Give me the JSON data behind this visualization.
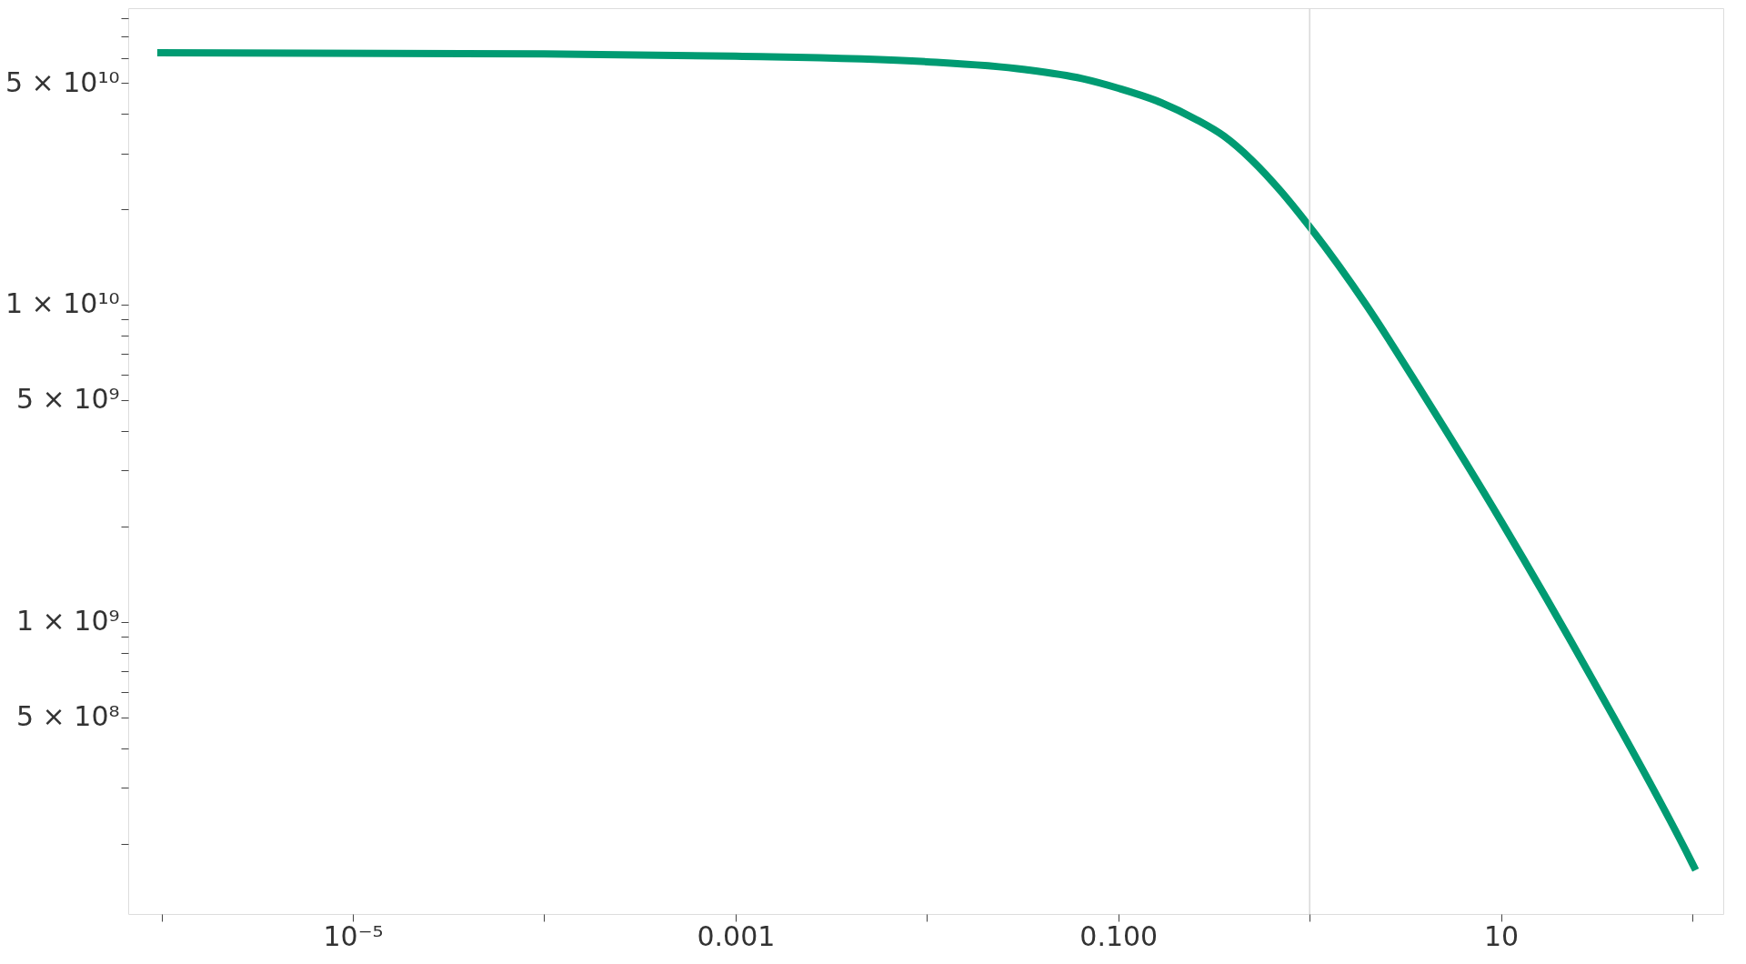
{
  "chart_data": {
    "type": "line",
    "log": "xy",
    "grid": false,
    "line_style": "solid",
    "marker": "none",
    "x": [
      9.5e-07,
      0.0001,
      0.001,
      0.01,
      0.0326,
      0.0646,
      0.1,
      0.168,
      0.254,
      0.356,
      0.5,
      0.706,
      1,
      1.97,
      3.9,
      10,
      30.3,
      100,
      104
    ],
    "series": [
      {
        "color": "#009b72",
        "values": [
          62200000000.0,
          61700000000.0,
          60700000000.0,
          58300000000.0,
          55100000000.0,
          51600000000.0,
          48100000000.0,
          43300000000.0,
          38400000000.0,
          34000000000.0,
          28500000000.0,
          22800000000.0,
          17600000000.0,
          10000000000.0,
          5250000000.0,
          2080000000.0,
          653000000.0,
          173000000.0,
          165000000.0
        ]
      }
    ],
    "xlim": [
      6.7e-07,
      145
    ],
    "ylim": [
      120000000.0,
      86000000000.0
    ],
    "xticks": [
      {
        "value": 1e-06,
        "label": null
      },
      {
        "value": 1e-05,
        "label": "10⁻⁵"
      },
      {
        "value": 0.0001,
        "label": null
      },
      {
        "value": 0.001,
        "label": "0.001"
      },
      {
        "value": 0.01,
        "label": null
      },
      {
        "value": 0.1,
        "label": "0.100"
      },
      {
        "value": 1,
        "label": null
      },
      {
        "value": 10,
        "label": "10"
      },
      {
        "value": 100,
        "label": null
      }
    ],
    "yticks": [
      {
        "value": 200000000.0,
        "label": null
      },
      {
        "value": 300000000.0,
        "label": null
      },
      {
        "value": 400000000.0,
        "label": null
      },
      {
        "value": 500000000.0,
        "label": "5 × 10⁸"
      },
      {
        "value": 600000000.0,
        "label": null
      },
      {
        "value": 700000000.0,
        "label": null
      },
      {
        "value": 800000000.0,
        "label": null
      },
      {
        "value": 900000000.0,
        "label": null
      },
      {
        "value": 1000000000.0,
        "label": "1 × 10⁹"
      },
      {
        "value": 2000000000.0,
        "label": null
      },
      {
        "value": 3000000000.0,
        "label": null
      },
      {
        "value": 4000000000.0,
        "label": null
      },
      {
        "value": 5000000000.0,
        "label": "5 × 10⁹"
      },
      {
        "value": 6000000000.0,
        "label": null
      },
      {
        "value": 7000000000.0,
        "label": null
      },
      {
        "value": 8000000000.0,
        "label": null
      },
      {
        "value": 9000000000.0,
        "label": null
      },
      {
        "value": 10000000000.0,
        "label": "1 × 10¹⁰"
      },
      {
        "value": 20000000000.0,
        "label": null
      },
      {
        "value": 30000000000.0,
        "label": null
      },
      {
        "value": 40000000000.0,
        "label": null
      },
      {
        "value": 50000000000.0,
        "label": "5 × 10¹⁰"
      },
      {
        "value": 60000000000.0,
        "label": null
      },
      {
        "value": 70000000000.0,
        "label": null
      },
      {
        "value": 80000000000.0,
        "label": null
      }
    ],
    "ref_lines": [
      {
        "axis": "x",
        "value": 1,
        "color": "#d9d9d9"
      }
    ]
  }
}
